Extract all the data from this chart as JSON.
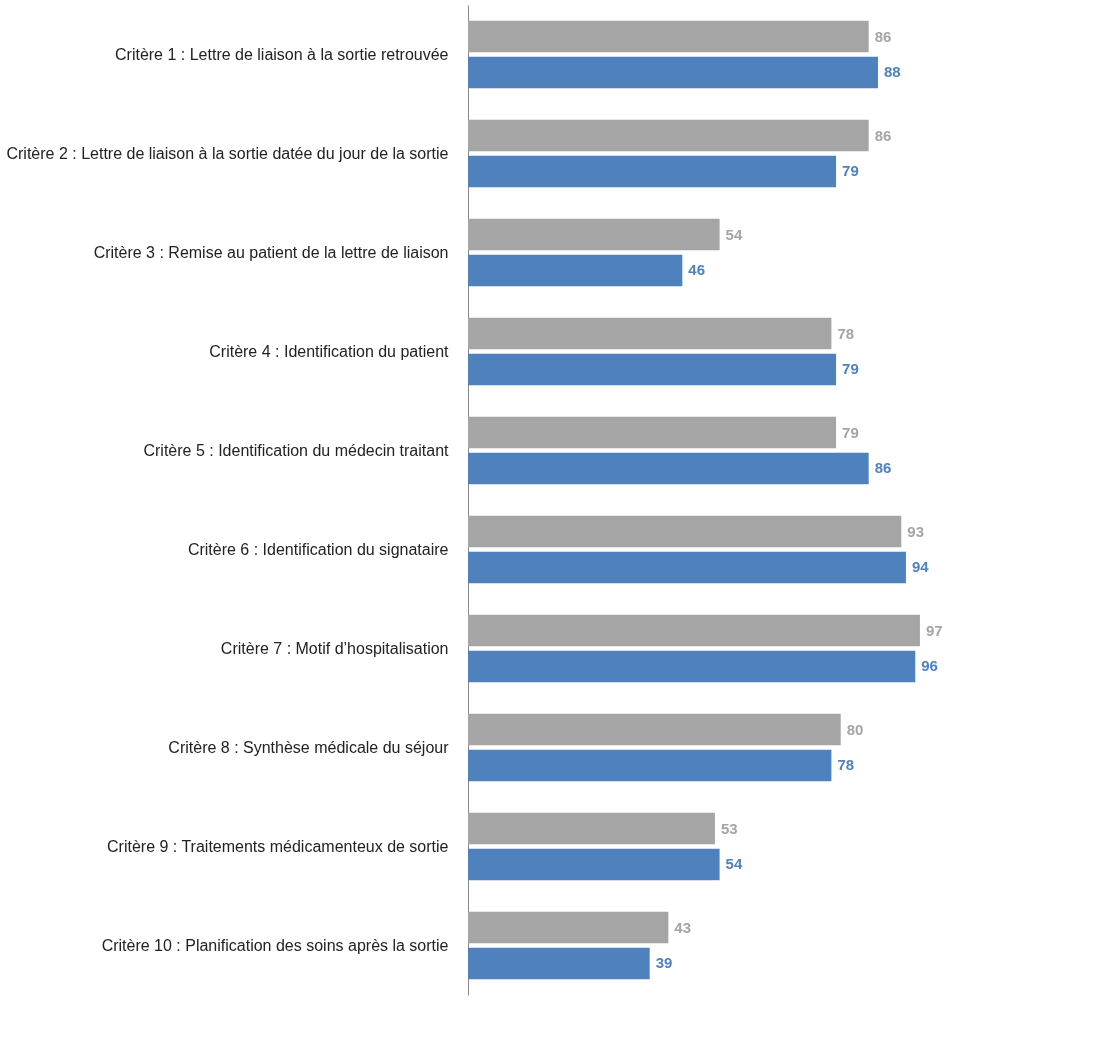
{
  "chart_data": {
    "type": "bar",
    "orientation": "horizontal",
    "data_labels": true,
    "grid": false,
    "legend": false,
    "categories": [
      "Critère 1 : Lettre de liaison à la sortie retrouvée",
      "Critère 2 : Lettre de liaison à la sortie datée du jour de la sortie",
      "Critère 3 : Remise au patient de la lettre de liaison",
      "Critère 4 : Identification du patient",
      "Critère 5 : Identification du médecin traitant",
      "Critère 6 : Identification du signataire",
      "Critère 7 : Motif d’hospitalisation",
      "Critère 8 : Synthèse médicale du séjour",
      "Critère 9 : Traitements médicamenteux de sortie",
      "Critère 10 : Planification des soins après la sortie"
    ],
    "series": [
      {
        "color": "#a5a5a5",
        "values": [
          86,
          86,
          54,
          78,
          79,
          93,
          97,
          80,
          53,
          43
        ]
      },
      {
        "color": "#4f81bd",
        "values": [
          88,
          79,
          46,
          79,
          86,
          94,
          96,
          78,
          54,
          39
        ]
      }
    ]
  }
}
